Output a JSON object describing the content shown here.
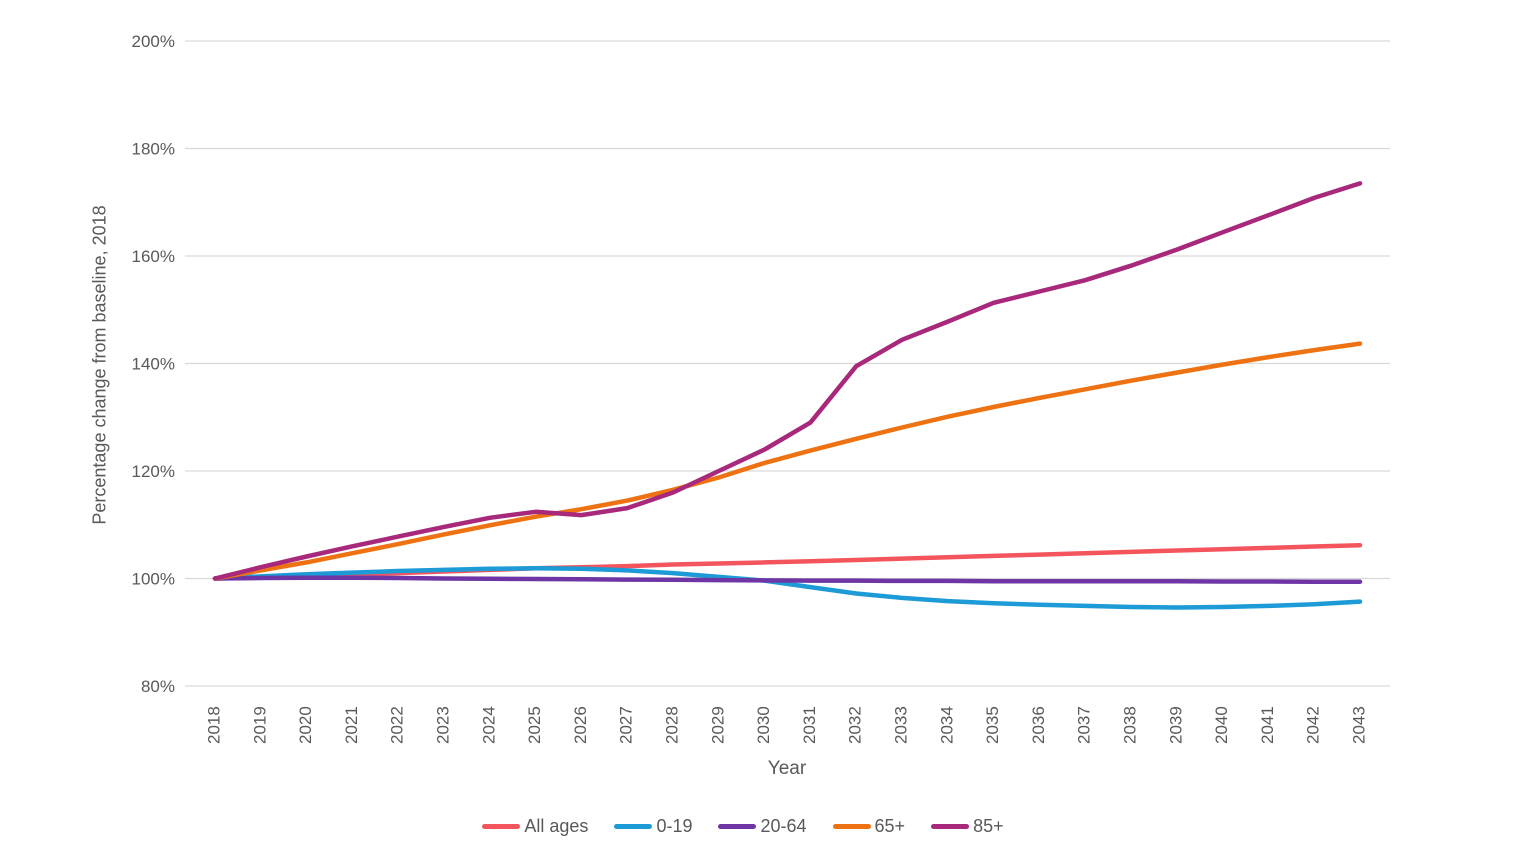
{
  "chart_data": {
    "type": "line",
    "title": "",
    "xlabel": "Year",
    "ylabel": "Percentage change from baseline, 2018",
    "x": [
      2018,
      2019,
      2020,
      2021,
      2022,
      2023,
      2024,
      2025,
      2026,
      2027,
      2028,
      2029,
      2030,
      2031,
      2032,
      2033,
      2034,
      2035,
      2036,
      2037,
      2038,
      2039,
      2040,
      2041,
      2042,
      2043
    ],
    "ylim": [
      80,
      200
    ],
    "yticks": [
      80,
      100,
      120,
      140,
      160,
      180,
      200
    ],
    "ytick_suffix": "%",
    "grid": "horizontal",
    "gridline_color": "#d9d9d9",
    "tick_label_color": "#595959",
    "legend_position": "bottom",
    "series": [
      {
        "name": "All ages",
        "color": "#f4555c",
        "values": [
          100,
          100.2,
          100.45,
          100.7,
          101,
          101.3,
          101.6,
          101.9,
          102.1,
          102.3,
          102.6,
          102.8,
          103,
          103.2,
          103.45,
          103.7,
          103.95,
          104.2,
          104.45,
          104.7,
          104.95,
          105.2,
          105.45,
          105.7,
          105.95,
          106.2
        ]
      },
      {
        "name": "0-19",
        "color": "#1d9bd6",
        "values": [
          100,
          100.4,
          100.8,
          101.1,
          101.4,
          101.6,
          101.8,
          101.9,
          101.8,
          101.5,
          101,
          100.3,
          99.6,
          98.4,
          97.2,
          96.4,
          95.8,
          95.4,
          95.1,
          94.9,
          94.7,
          94.6,
          94.7,
          94.9,
          95.2,
          95.7
        ]
      },
      {
        "name": "20-64",
        "color": "#6e35a5",
        "values": [
          100,
          100.1,
          100.15,
          100.15,
          100.1,
          100,
          99.95,
          99.9,
          99.85,
          99.8,
          99.75,
          99.7,
          99.65,
          99.6,
          99.6,
          99.55,
          99.55,
          99.5,
          99.5,
          99.5,
          99.5,
          99.5,
          99.45,
          99.45,
          99.4,
          99.4
        ]
      },
      {
        "name": "65+",
        "color": "#ee7211",
        "values": [
          100,
          101.5,
          103,
          104.7,
          106.4,
          108.2,
          109.9,
          111.5,
          112.9,
          114.5,
          116.5,
          118.8,
          121.5,
          123.8,
          126,
          128.1,
          130.1,
          131.9,
          133.6,
          135.2,
          136.8,
          138.3,
          139.8,
          141.2,
          142.5,
          143.7
        ]
      },
      {
        "name": "85+",
        "color": "#a8297b",
        "values": [
          100,
          102.1,
          104.1,
          106,
          107.8,
          109.6,
          111.3,
          112.4,
          111.8,
          113.1,
          116,
          120,
          124,
          129,
          139.5,
          144.4,
          147.8,
          151.3,
          153.4,
          155.5,
          158.2,
          161.2,
          164.4,
          167.6,
          170.8,
          173.5
        ]
      }
    ]
  }
}
